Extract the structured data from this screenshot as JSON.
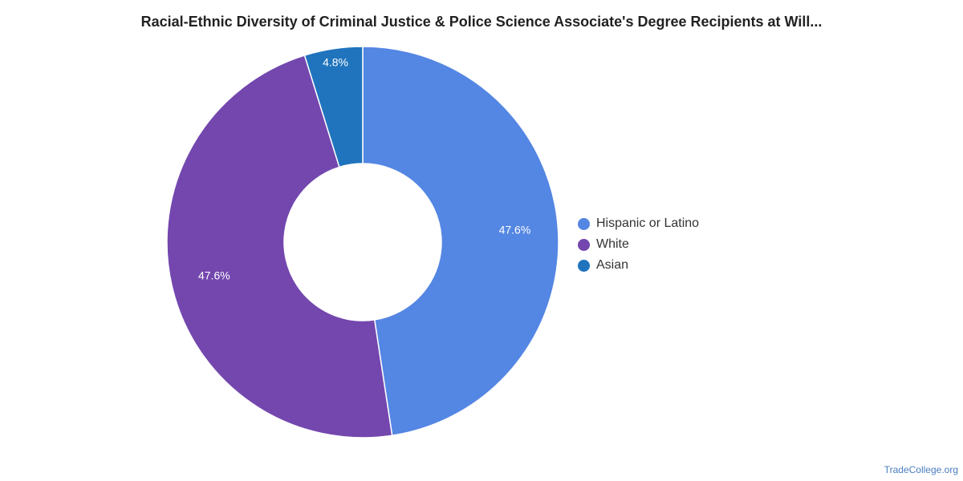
{
  "chart_data": {
    "type": "pie",
    "title": "Racial-Ethnic Diversity of Criminal Justice & Police Science Associate's Degree Recipients at Will...",
    "categories": [
      "Hispanic or Latino",
      "White",
      "Asian"
    ],
    "values": [
      47.6,
      47.6,
      4.8
    ],
    "labels": [
      "47.6%",
      "47.6%",
      "4.8%"
    ],
    "colors": [
      "#5486e3",
      "#7347ae",
      "#1f74bd"
    ],
    "legend_position": "right"
  },
  "source": "TradeCollege.org"
}
